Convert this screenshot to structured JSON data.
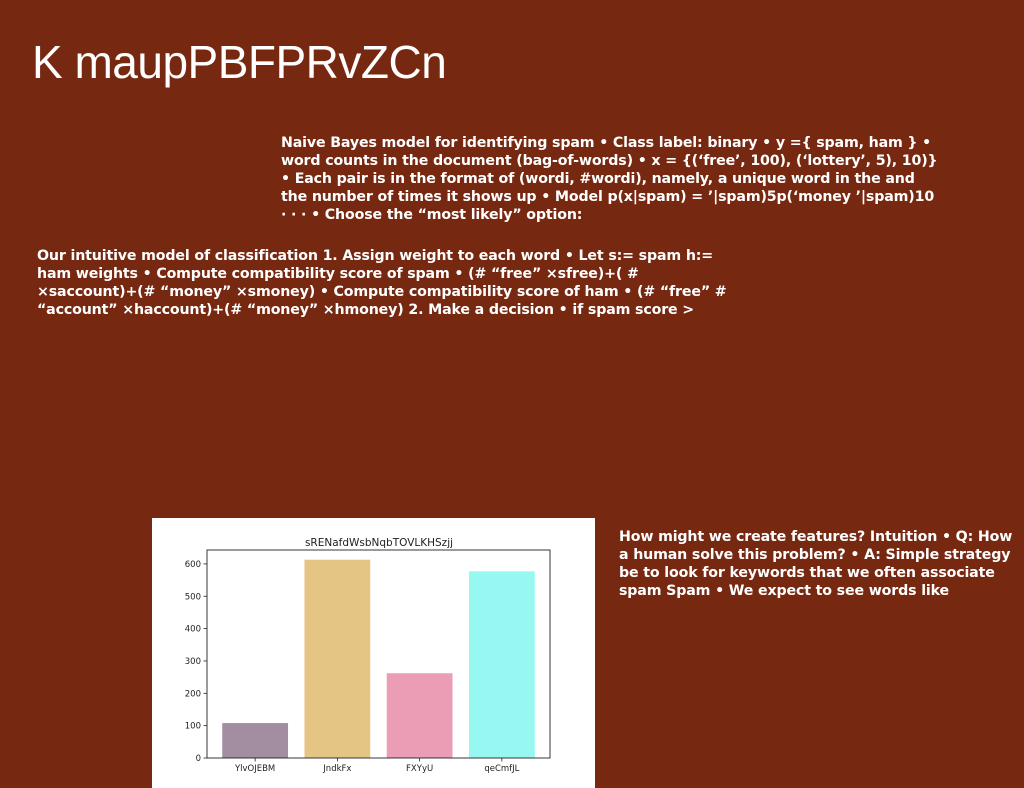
{
  "slide": {
    "title": "K maupPBFPRvZCn",
    "paragraph_1": "Naive Bayes model for identifying spam • Class label: binary • y ={ spam, ham } • word counts in the document (bag-of-words) • x = {(‘free’, 100), (‘lottery’, 5), 10)} • Each pair is in the format of (wordi, #wordi), namely, a unique word in the and the number of times it shows up • Model p(x|spam) = ’|spam)5p(‘money ’|spam)10 · · · • Choose the “most likely” option:",
    "paragraph_2": "Our intuitive model of classification 1. Assign weight to each word • Let s:= spam h:= ham weights • Compute compatibility score of spam • (# “free” ×sfree)+( # ×saccount)+(# “money” ×smoney) • Compute compatibility score of ham • (# “free” # “account” ×haccount)+(# “money” ×hmoney) 2. Make a decision • if spam score >",
    "paragraph_3": "How might we create features? Intuition • Q: How a human solve this problem? • A: Simple strategy be to look for keywords that we often associate spam Spam • We expect to see words like"
  },
  "chart_data": {
    "type": "bar",
    "title": "sRENafdWsbNqbTOVLKHSzjj",
    "categories": [
      "YlvOJEBM",
      "JndkFx",
      "FXYyU",
      "qeCmfJL"
    ],
    "values": [
      108,
      613,
      262,
      577
    ],
    "colors": [
      "#a38da1",
      "#e5c584",
      "#eb9db6",
      "#97f8f2"
    ],
    "ylim": [
      0,
      643
    ],
    "yticks": [
      0,
      100,
      200,
      300,
      400,
      500,
      600
    ],
    "xlabel": "",
    "ylabel": "",
    "grid": false,
    "legend": "none"
  }
}
